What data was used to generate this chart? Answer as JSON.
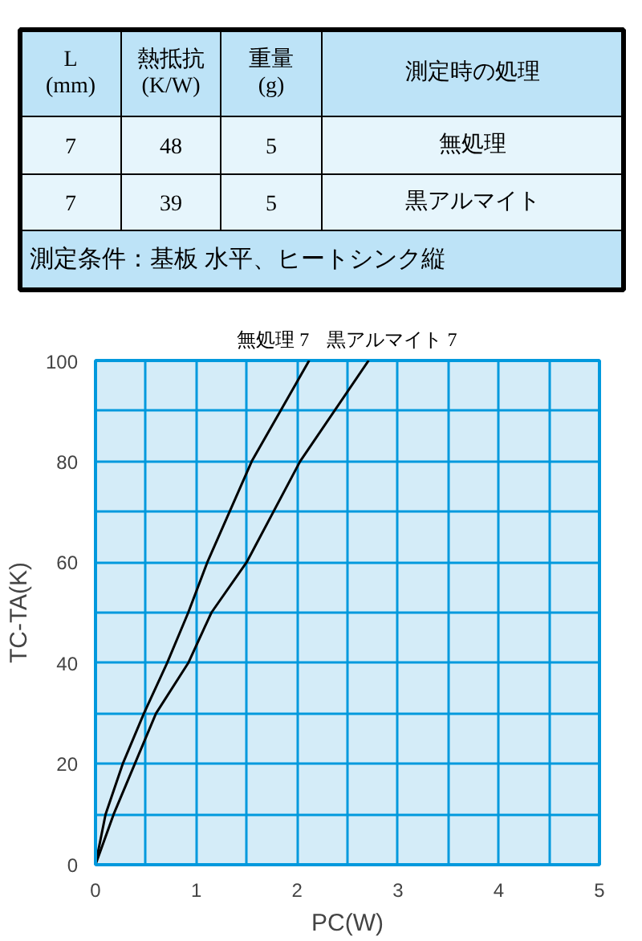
{
  "chart_data": [
    {
      "type": "other",
      "annotations": [
        "L\n(mm)",
        "熱抵抗\n(K/W)",
        "重量\n(g)",
        "測定時の処理",
        "7",
        "48",
        "5",
        "無処理",
        "7",
        "39",
        "5",
        "黒アルマイト",
        "測定条件：基板 水平、ヒートシンク縦"
      ]
    },
    {
      "type": "line",
      "xlabel": "PC(W)",
      "ylabel": "TC-TA(K)",
      "xlim": [
        0,
        5
      ],
      "ylim": [
        0,
        100
      ],
      "xticks": [
        0,
        {
          "value": 0.5,
          "label": null
        },
        1,
        {
          "value": 1.5,
          "label": null
        },
        2,
        {
          "value": 2.5,
          "label": null
        },
        3,
        {
          "value": 3.5,
          "label": null
        },
        4,
        {
          "value": 4.5,
          "label": null
        },
        5
      ],
      "yticks": [
        0,
        {
          "value": 10,
          "label": null
        },
        20,
        {
          "value": 30,
          "label": null
        },
        40,
        {
          "value": 50,
          "label": null
        },
        60,
        {
          "value": 70,
          "label": null
        },
        80,
        {
          "value": 90,
          "label": null
        },
        100
      ],
      "grid": true,
      "marker": "none",
      "line_style": "solid",
      "series": [
        {
          "name": "無処理 7",
          "color": "#000000",
          "x": [
            0,
            0.1,
            0.27,
            0.48,
            0.71,
            0.92,
            1.11,
            1.55,
            2.12
          ],
          "values": [
            0,
            10,
            20,
            30,
            40,
            50,
            60,
            80,
            100
          ]
        },
        {
          "name": "黒アルマイト 7",
          "color": "#000000",
          "x": [
            0,
            0.18,
            0.39,
            0.6,
            0.92,
            1.15,
            1.5,
            2.03,
            2.71
          ],
          "values": [
            0,
            10,
            20,
            30,
            40,
            50,
            60,
            80,
            100
          ]
        }
      ]
    }
  ]
}
